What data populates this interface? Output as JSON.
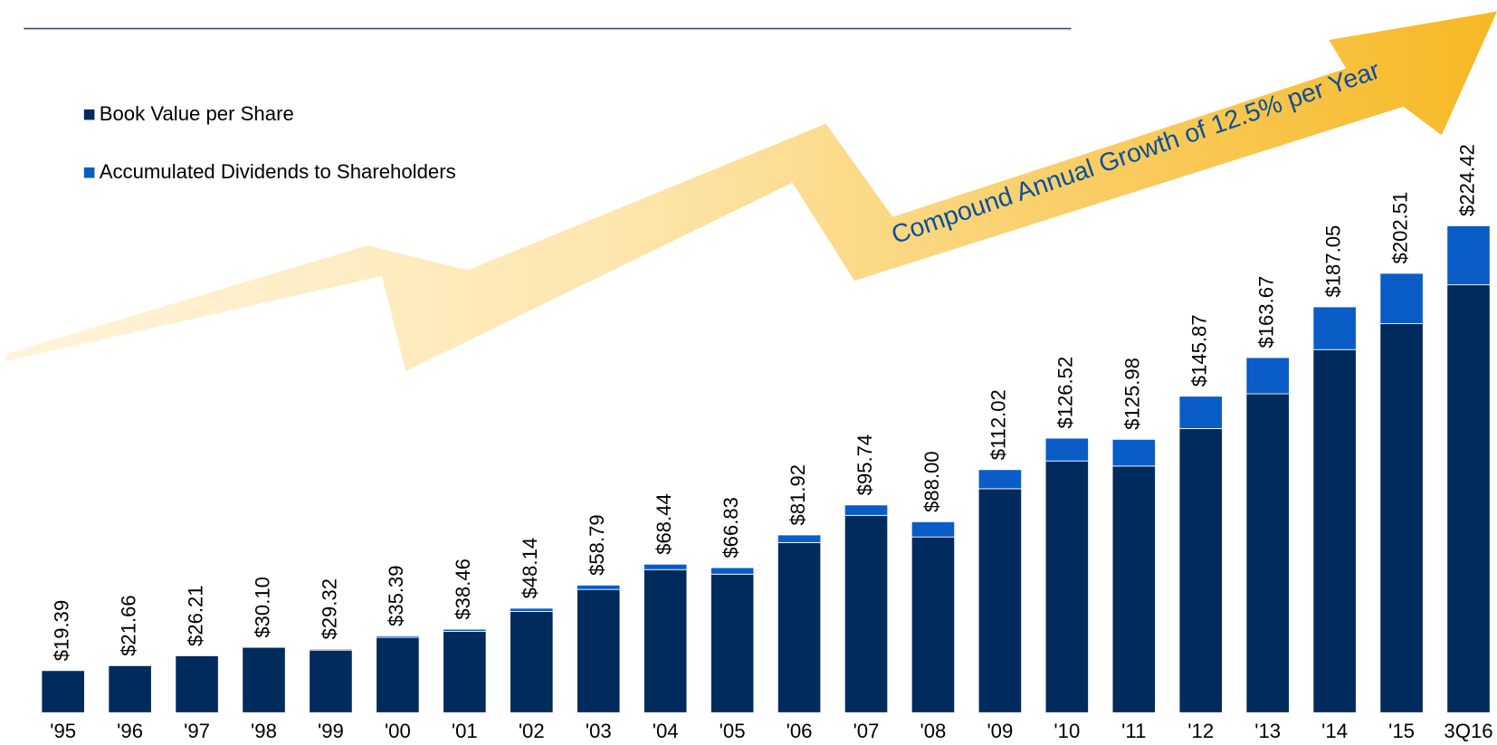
{
  "chart_data": {
    "type": "bar",
    "stacked": true,
    "annotation": "Compound Annual Growth of 12.5% per Year",
    "categories": [
      "'95",
      "'96",
      "'97",
      "'98",
      "'99",
      "'00",
      "'01",
      "'02",
      "'03",
      "'04",
      "'05",
      "'06",
      "'07",
      "'08",
      "'09",
      "'10",
      "'11",
      "'12",
      "'13",
      "'14",
      "'15",
      "3Q16"
    ],
    "series": [
      {
        "name": "Book Value per Share",
        "color": "#002b5c",
        "values": [
          19.39,
          21.66,
          26.21,
          30.1,
          28.82,
          34.69,
          37.46,
          46.64,
          56.79,
          65.94,
          63.83,
          78.42,
          90.94,
          81.0,
          103.22,
          116.02,
          113.68,
          130.97,
          146.97,
          167.35,
          179.31,
          197.22
        ]
      },
      {
        "name": "Accumulated Dividends to Shareholders",
        "color": "#0a5cc6",
        "values": [
          0,
          0,
          0,
          0,
          0.5,
          0.7,
          1.0,
          1.5,
          2.0,
          2.5,
          3.0,
          3.5,
          4.8,
          7.0,
          8.8,
          10.5,
          12.3,
          14.9,
          16.7,
          19.7,
          23.2,
          27.2
        ]
      }
    ],
    "totals": [
      19.39,
      21.66,
      26.21,
      30.1,
      29.32,
      35.39,
      38.46,
      48.14,
      58.79,
      68.44,
      66.83,
      81.92,
      95.74,
      88.0,
      112.02,
      126.52,
      125.98,
      145.87,
      163.67,
      187.05,
      202.51,
      224.42
    ],
    "total_labels": [
      "$19.39",
      "$21.66",
      "$26.21",
      "$30.10",
      "$29.32",
      "$35.39",
      "$38.46",
      "$48.14",
      "$58.79",
      "$68.44",
      "$66.83",
      "$81.92",
      "$95.74",
      "$88.00",
      "$112.02",
      "$126.52",
      "$125.98",
      "$145.87",
      "$163.67",
      "$187.05",
      "$202.51",
      "$224.42"
    ],
    "ylim": [
      0,
      250
    ]
  }
}
